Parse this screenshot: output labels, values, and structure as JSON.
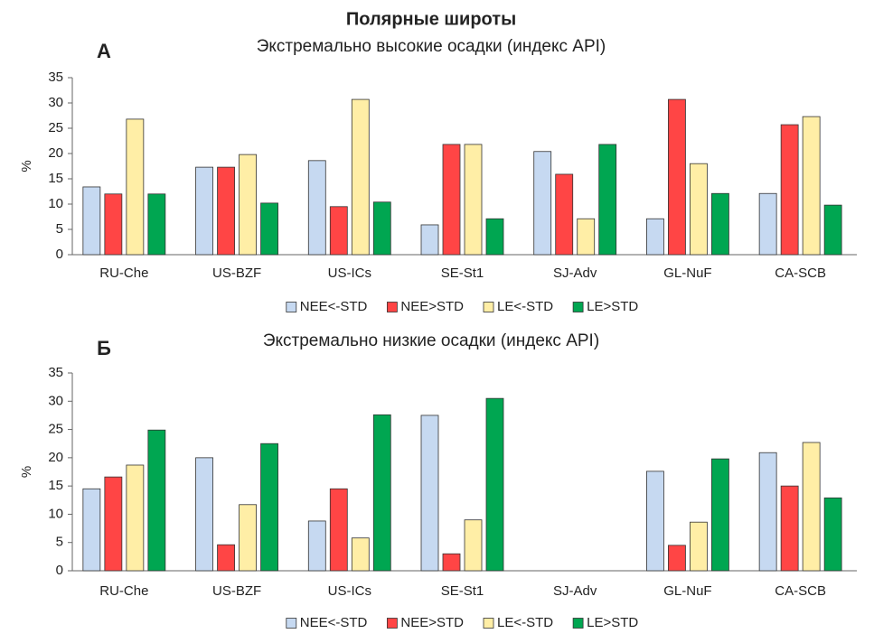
{
  "title": "Полярные широты",
  "chart_data": [
    {
      "type": "bar",
      "label": "А",
      "title": "Экстремально высокие осадки (индекс API)",
      "ylabel": "%",
      "categories": [
        "RU-Che",
        "US-BZF",
        "US-ICs",
        "SE-St1",
        "SJ-Adv",
        "GL-NuF",
        "CA-SCB"
      ],
      "series": [
        {
          "name": "NEE<-STD",
          "color": "#c6d9f1",
          "values": [
            13.4,
            17.3,
            18.6,
            5.9,
            20.4,
            7.1,
            12.1
          ]
        },
        {
          "name": "NEE>STD",
          "color": "#ff4545",
          "values": [
            12,
            17.3,
            9.5,
            21.8,
            15.9,
            30.7,
            25.7
          ]
        },
        {
          "name": "LE<-STD",
          "color": "#ffeea6",
          "values": [
            26.8,
            19.8,
            30.7,
            21.8,
            7.1,
            18,
            27.3
          ]
        },
        {
          "name": "LE>STD",
          "color": "#00a651",
          "values": [
            12,
            10.2,
            10.4,
            7.1,
            21.8,
            12.1,
            9.8
          ]
        }
      ],
      "ylim": [
        0,
        35
      ],
      "yticks": [
        0,
        5,
        10,
        15,
        20,
        25,
        30,
        35
      ],
      "grid": false,
      "legend": "bottom"
    },
    {
      "type": "bar",
      "label": "Б",
      "title": "Экстремально низкие осадки (индекс API)",
      "ylabel": "%",
      "categories": [
        "RU-Che",
        "US-BZF",
        "US-ICs",
        "SE-St1",
        "SJ-Adv",
        "GL-NuF",
        "CA-SCB"
      ],
      "series": [
        {
          "name": "NEE<-STD",
          "color": "#c6d9f1",
          "values": [
            14.5,
            20,
            8.8,
            27.5,
            null,
            17.6,
            20.9
          ]
        },
        {
          "name": "NEE>STD",
          "color": "#ff4545",
          "values": [
            16.6,
            4.6,
            14.5,
            3,
            null,
            4.5,
            15
          ]
        },
        {
          "name": "LE<-STD",
          "color": "#ffeea6",
          "values": [
            18.7,
            11.7,
            5.8,
            9,
            null,
            8.6,
            22.7
          ]
        },
        {
          "name": "LE>STD",
          "color": "#00a651",
          "values": [
            24.9,
            22.5,
            27.6,
            30.5,
            null,
            19.8,
            12.9
          ]
        }
      ],
      "ylim": [
        0,
        35
      ],
      "yticks": [
        0,
        5,
        10,
        15,
        20,
        25,
        30,
        35
      ],
      "grid": false,
      "legend": "bottom"
    }
  ]
}
